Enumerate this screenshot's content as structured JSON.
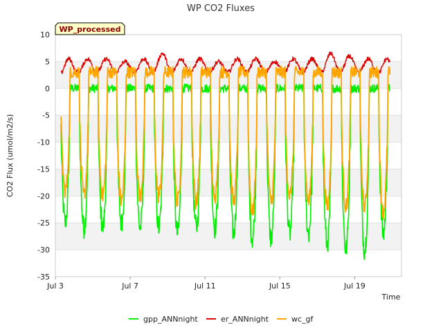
{
  "chart_data": {
    "type": "line",
    "title": "WP CO2 Fluxes",
    "xlabel": "Time",
    "ylabel": "CO2 Flux (umol/m2/s)",
    "badge": "WP_processed",
    "ylim": [
      -35,
      10
    ],
    "yticks": [
      10,
      5,
      0,
      -5,
      -10,
      -15,
      -20,
      -25,
      -30,
      -35
    ],
    "xlim_days": [
      3.0,
      21.5
    ],
    "xticks": [
      {
        "day": 3,
        "label": "Jul 3"
      },
      {
        "day": 7,
        "label": "Jul 7"
      },
      {
        "day": 11,
        "label": "Jul 11"
      },
      {
        "day": 15,
        "label": "Jul 15"
      },
      {
        "day": 19,
        "label": "Jul 19"
      }
    ],
    "x_start_day": 3.3,
    "x_end_day": 20.9,
    "daily_cycle": {
      "first_peak_day": 3.6,
      "day_count": 18,
      "gpp_daily_min": [
        -25,
        -26,
        -26,
        -25,
        -26,
        -26,
        -27,
        -26,
        -26,
        -27,
        -28,
        -28,
        -27,
        -27,
        -29,
        -30,
        -30,
        -27
      ],
      "gpp_night_level": 0,
      "wc_daily_min": [
        -19,
        -20,
        -20,
        -21,
        -20,
        -20,
        -21,
        -21,
        -20,
        -21,
        -23,
        -21,
        -20,
        -21,
        -22,
        -22,
        -22,
        -23
      ],
      "wc_night_level": 3,
      "er_daily_max": [
        5.5,
        5.5,
        5.5,
        5.0,
        5.5,
        6.5,
        5.5,
        5.5,
        5.0,
        5.5,
        5.5,
        5.0,
        5.5,
        5.5,
        6.5,
        6.0,
        5.5,
        5.5
      ],
      "er_daily_min": [
        2.5,
        3.0,
        3.0,
        3.0,
        3.0,
        3.0,
        3.0,
        3.0,
        3.0,
        3.0,
        3.0,
        3.0,
        3.0,
        3.0,
        3.0,
        3.0,
        3.0,
        2.5
      ]
    },
    "series": [
      {
        "name": "gpp_ANNnight",
        "color": "#00ee00"
      },
      {
        "name": "er_ANNnight",
        "color": "#dd0000"
      },
      {
        "name": "wc_gf",
        "color": "#ffa500"
      }
    ],
    "grid": true,
    "legend_position": "bottom"
  }
}
